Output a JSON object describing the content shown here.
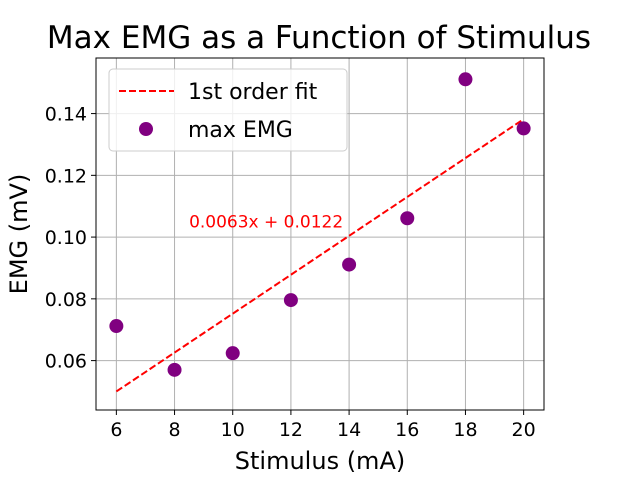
{
  "chart_data": {
    "type": "scatter",
    "title": "Max EMG as a Function of Stimulus",
    "xlabel": "Stimulus (mA)",
    "ylabel": "EMG (mV)",
    "xlim": [
      5.3,
      20.7
    ],
    "ylim": [
      0.044,
      0.158
    ],
    "xticks": [
      6,
      8,
      10,
      12,
      14,
      16,
      18,
      20
    ],
    "yticks": [
      0.06,
      0.08,
      0.1,
      0.12,
      0.14
    ],
    "xtick_labels": [
      "6",
      "8",
      "10",
      "12",
      "14",
      "16",
      "18",
      "20"
    ],
    "ytick_labels": [
      "0.06",
      "0.08",
      "0.10",
      "0.12",
      "0.14"
    ],
    "grid": true,
    "legend_placement": "upper-left",
    "series": [
      {
        "name": "max EMG",
        "kind": "scatter",
        "color": "#800080",
        "x": [
          6,
          8,
          10,
          12,
          14,
          16,
          18,
          20
        ],
        "y": [
          0.0712,
          0.057,
          0.0624,
          0.0796,
          0.0911,
          0.1061,
          0.1511,
          0.1352
        ]
      },
      {
        "name": "1st order fit",
        "kind": "line",
        "style": "dashed",
        "color": "#ff0000",
        "slope": 0.0063,
        "intercept": 0.0122,
        "x": [
          6,
          20
        ]
      }
    ],
    "annotations": [
      {
        "text": "0.0063x + 0.0122",
        "x": 8.5,
        "y": 0.105,
        "color": "#ff0000"
      }
    ]
  }
}
